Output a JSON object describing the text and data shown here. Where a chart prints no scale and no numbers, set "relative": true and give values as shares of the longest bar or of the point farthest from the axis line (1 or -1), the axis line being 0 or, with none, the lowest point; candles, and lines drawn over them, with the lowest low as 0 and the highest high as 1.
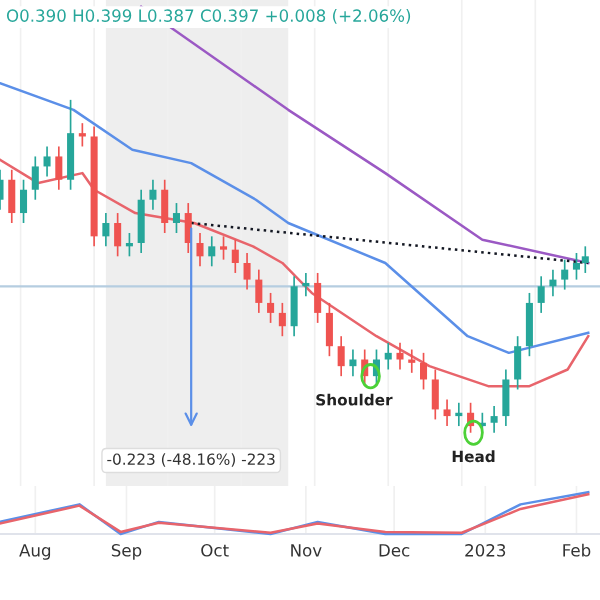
{
  "chart_data": [
    {
      "type": "candlestick",
      "relative": true,
      "title": "O0.390 H0.399 L0.387 C0.397 +0.008 (+2.06%)",
      "x": [
        "2022-07-20",
        "2022-07-24",
        "2022-07-28",
        "2022-08-01",
        "2022-08-05",
        "2022-08-09",
        "2022-08-13",
        "2022-08-17",
        "2022-08-21",
        "2022-08-25",
        "2022-08-29",
        "2022-09-02",
        "2022-09-06",
        "2022-09-10",
        "2022-09-14",
        "2022-09-18",
        "2022-09-22",
        "2022-09-26",
        "2022-09-30",
        "2022-10-04",
        "2022-10-08",
        "2022-10-12",
        "2022-10-16",
        "2022-10-20",
        "2022-10-24",
        "2022-10-28",
        "2022-11-01",
        "2022-11-05",
        "2022-11-09",
        "2022-11-13",
        "2022-11-17",
        "2022-11-21",
        "2022-11-25",
        "2022-11-29",
        "2022-12-03",
        "2022-12-07",
        "2022-12-11",
        "2022-12-15",
        "2022-12-19",
        "2022-12-23",
        "2022-12-27",
        "2022-12-31",
        "2023-01-04",
        "2023-01-08",
        "2023-01-12",
        "2023-01-16",
        "2023-01-20",
        "2023-01-24",
        "2023-01-28",
        "2023-02-01",
        "2023-02-04"
      ],
      "ohlc": [
        [
          0.7,
          0.79,
          0.67,
          0.76
        ],
        [
          0.76,
          0.79,
          0.63,
          0.66
        ],
        [
          0.66,
          0.76,
          0.63,
          0.73
        ],
        [
          0.73,
          0.83,
          0.7,
          0.8
        ],
        [
          0.8,
          0.86,
          0.77,
          0.83
        ],
        [
          0.83,
          0.86,
          0.73,
          0.76
        ],
        [
          0.76,
          1.0,
          0.73,
          0.9
        ],
        [
          0.9,
          0.93,
          0.86,
          0.89
        ],
        [
          0.89,
          0.92,
          0.56,
          0.59
        ],
        [
          0.59,
          0.66,
          0.56,
          0.63
        ],
        [
          0.63,
          0.66,
          0.53,
          0.56
        ],
        [
          0.56,
          0.6,
          0.53,
          0.57
        ],
        [
          0.57,
          0.73,
          0.54,
          0.7
        ],
        [
          0.7,
          0.76,
          0.67,
          0.73
        ],
        [
          0.73,
          0.76,
          0.6,
          0.63
        ],
        [
          0.63,
          0.69,
          0.6,
          0.66
        ],
        [
          0.66,
          0.69,
          0.54,
          0.57
        ],
        [
          0.57,
          0.6,
          0.5,
          0.53
        ],
        [
          0.53,
          0.59,
          0.5,
          0.56
        ],
        [
          0.56,
          0.59,
          0.52,
          0.55
        ],
        [
          0.55,
          0.58,
          0.48,
          0.51
        ],
        [
          0.51,
          0.54,
          0.43,
          0.46
        ],
        [
          0.46,
          0.49,
          0.36,
          0.39
        ],
        [
          0.39,
          0.42,
          0.33,
          0.36
        ],
        [
          0.36,
          0.39,
          0.29,
          0.32
        ],
        [
          0.32,
          0.47,
          0.29,
          0.44
        ],
        [
          0.44,
          0.48,
          0.41,
          0.45
        ],
        [
          0.45,
          0.48,
          0.33,
          0.36
        ],
        [
          0.36,
          0.39,
          0.23,
          0.26
        ],
        [
          0.26,
          0.29,
          0.17,
          0.2
        ],
        [
          0.2,
          0.25,
          0.17,
          0.22
        ],
        [
          0.22,
          0.25,
          0.14,
          0.17
        ],
        [
          0.17,
          0.25,
          0.14,
          0.22
        ],
        [
          0.22,
          0.27,
          0.19,
          0.24
        ],
        [
          0.24,
          0.27,
          0.19,
          0.22
        ],
        [
          0.22,
          0.25,
          0.18,
          0.21
        ],
        [
          0.21,
          0.24,
          0.13,
          0.16
        ],
        [
          0.16,
          0.19,
          0.04,
          0.07
        ],
        [
          0.07,
          0.1,
          0.02,
          0.05
        ],
        [
          0.05,
          0.09,
          0.02,
          0.06
        ],
        [
          0.06,
          0.09,
          0.0,
          0.02
        ],
        [
          0.02,
          0.06,
          0.0,
          0.03
        ],
        [
          0.03,
          0.08,
          0.0,
          0.05
        ],
        [
          0.05,
          0.19,
          0.02,
          0.16
        ],
        [
          0.16,
          0.29,
          0.13,
          0.26
        ],
        [
          0.26,
          0.42,
          0.23,
          0.39
        ],
        [
          0.39,
          0.47,
          0.36,
          0.44
        ],
        [
          0.44,
          0.49,
          0.41,
          0.46
        ],
        [
          0.46,
          0.52,
          0.43,
          0.49
        ],
        [
          0.49,
          0.54,
          0.46,
          0.51
        ],
        [
          0.51,
          0.56,
          0.48,
          0.53
        ]
      ],
      "series": [
        {
          "type": "line",
          "color": "#e8646b",
          "x": [
            "2022-07-20",
            "2022-08-02",
            "2022-08-17",
            "2022-08-21",
            "2022-09-04",
            "2022-09-24",
            "2022-10-14",
            "2022-10-24",
            "2022-11-03",
            "2022-11-25",
            "2022-12-13",
            "2023-01-02",
            "2023-01-16",
            "2023-01-29",
            "2023-02-05"
          ],
          "values": [
            0.82,
            0.75,
            0.78,
            0.73,
            0.66,
            0.63,
            0.56,
            0.51,
            0.42,
            0.29,
            0.2,
            0.14,
            0.14,
            0.19,
            0.29
          ]
        },
        {
          "type": "line",
          "color": "#5b8fe8",
          "x": [
            "2022-07-20",
            "2022-08-14",
            "2022-09-03",
            "2022-09-23",
            "2022-10-15",
            "2022-10-26",
            "2022-11-28",
            "2022-12-26",
            "2023-01-09",
            "2023-02-05"
          ],
          "values": [
            1.05,
            0.97,
            0.85,
            0.81,
            0.7,
            0.63,
            0.51,
            0.29,
            0.24,
            0.3
          ]
        },
        {
          "type": "line",
          "color": "#9b59c4",
          "x": [
            "2022-09-06",
            "2022-10-26",
            "2022-11-28",
            "2022-12-31",
            "2023-02-05"
          ],
          "values": [
            1.28,
            0.97,
            0.78,
            0.58,
            0.51
          ]
        },
        {
          "type": "line",
          "color": "#131722",
          "line_style": "dotted",
          "x": [
            "2022-09-23",
            "2023-02-05"
          ],
          "values": [
            0.63,
            0.51
          ]
        }
      ],
      "ref_lines": [
        {
          "axis": "y",
          "value": 0.44,
          "color": "#b5cde0"
        }
      ],
      "bands": [
        {
          "axis": "x",
          "from": "2022-08-25",
          "to": "2022-10-26",
          "color": "#eeeeee"
        }
      ],
      "annotations": [
        "-0.223 (-48.16%) -223",
        {
          "text": "Shoulder",
          "x": "2022-11-23",
          "y": 0.17
        },
        {
          "text": "Head",
          "x": "2022-12-28",
          "y": 0.0
        }
      ],
      "xlim": [
        "2022-07-20",
        "2023-02-09"
      ],
      "tick_labels": false,
      "grid": "x"
    },
    {
      "type": "line",
      "relative": true,
      "series": [
        {
          "color": "#5b8fe8",
          "x": [
            "2022-07-20",
            "2022-08-16",
            "2022-08-30",
            "2022-09-12",
            "2022-10-20",
            "2022-11-05",
            "2022-11-28",
            "2022-12-24",
            "2023-01-13",
            "2023-02-05"
          ],
          "values": [
            0.29,
            0.71,
            0.0,
            0.29,
            0.0,
            0.29,
            0.0,
            0.0,
            0.71,
            1.0
          ]
        },
        {
          "color": "#e8646b",
          "x": [
            "2022-07-20",
            "2022-08-16",
            "2022-08-30",
            "2022-09-12",
            "2022-10-20",
            "2022-11-05",
            "2022-11-28",
            "2022-12-24",
            "2023-01-13",
            "2023-02-05"
          ],
          "values": [
            0.25,
            0.68,
            0.05,
            0.27,
            0.03,
            0.25,
            0.05,
            0.03,
            0.6,
            0.95
          ]
        }
      ],
      "xlim": [
        "2022-07-20",
        "2023-02-09"
      ],
      "xticks": [
        {
          "value": "2022-08-01",
          "label": "Aug"
        },
        {
          "value": "2022-09-01",
          "label": "Sep"
        },
        {
          "value": "2022-10-01",
          "label": "Oct"
        },
        {
          "value": "2022-11-01",
          "label": "Nov"
        },
        {
          "value": "2022-12-01",
          "label": "Dec"
        },
        {
          "value": "2023-01-01",
          "label": "2023"
        },
        {
          "value": "2023-02-01",
          "label": "Feb"
        }
      ],
      "tick_labels": "x",
      "grid": "x"
    }
  ]
}
